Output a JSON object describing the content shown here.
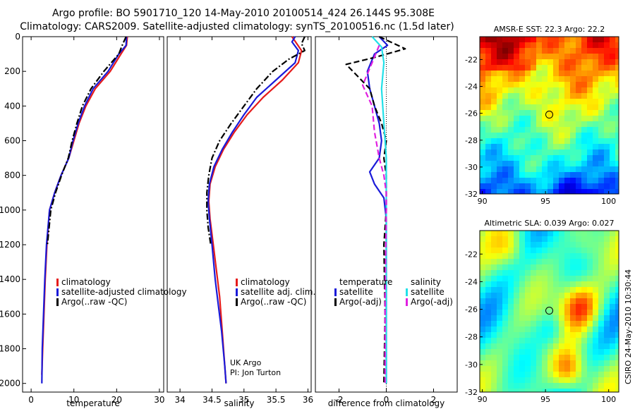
{
  "title": {
    "line1": "Argo profile: BO 5901710_120 14-May-2010 20100514_424 26.144S 95.308E",
    "line2": "Climatology: CARS2009. Satellite-adjusted climatology: synTS_20100516.nc (1.5d later)"
  },
  "credit": {
    "line1": "UK Argo",
    "line2": "PI: Jon Turton"
  },
  "stamp": "CSIRO 24-May-2010 10:30:44",
  "colors": {
    "climatology": "#e51b1b",
    "satellite": "#1a1ad9",
    "argo": "#000000",
    "sat_sal": "#22e0e8",
    "argo_sal": "#e020e0"
  },
  "chart_data": [
    {
      "type": "line",
      "id": "temperature",
      "xlabel": "temperature",
      "ylabel": "",
      "xlim": [
        -2,
        31
      ],
      "ylim": [
        0,
        2050
      ],
      "y_reversed": true,
      "xticks": [
        0,
        10,
        20,
        30
      ],
      "yticks": [
        0,
        200,
        400,
        600,
        800,
        1000,
        1200,
        1400,
        1600,
        1800,
        2000
      ],
      "legend": {
        "placement": "lower-right",
        "entries": [
          "climatology",
          "satellite-adjusted climatology",
          "Argo(..raw -QC)"
        ]
      },
      "series": [
        {
          "name": "climatology",
          "style": "solid",
          "color_key": "climatology",
          "points": [
            [
              22.5,
              0
            ],
            [
              22.3,
              50
            ],
            [
              21.0,
              100
            ],
            [
              18.5,
              200
            ],
            [
              15.0,
              300
            ],
            [
              12.8,
              400
            ],
            [
              11.2,
              500
            ],
            [
              10.0,
              600
            ],
            [
              8.8,
              700
            ],
            [
              7.0,
              800
            ],
            [
              5.5,
              900
            ],
            [
              4.3,
              1000
            ],
            [
              3.7,
              1200
            ],
            [
              3.3,
              1400
            ],
            [
              3.0,
              1600
            ],
            [
              2.7,
              1800
            ],
            [
              2.5,
              1950
            ]
          ]
        },
        {
          "name": "satellite-adjusted climatology",
          "style": "solid",
          "color_key": "satellite",
          "points": [
            [
              22.3,
              0
            ],
            [
              22.2,
              50
            ],
            [
              20.5,
              100
            ],
            [
              18.0,
              200
            ],
            [
              14.5,
              300
            ],
            [
              12.5,
              400
            ],
            [
              11.0,
              500
            ],
            [
              9.8,
              600
            ],
            [
              8.8,
              700
            ],
            [
              7.0,
              800
            ],
            [
              5.5,
              900
            ],
            [
              4.3,
              1000
            ],
            [
              3.6,
              1200
            ],
            [
              3.2,
              1400
            ],
            [
              2.9,
              1600
            ],
            [
              2.6,
              1800
            ],
            [
              2.5,
              2000
            ]
          ]
        },
        {
          "name": "Argo(..raw -QC)",
          "style": "dashdot",
          "color_key": "argo",
          "points": [
            [
              22.2,
              0
            ],
            [
              21.3,
              50
            ],
            [
              20.5,
              100
            ],
            [
              17.0,
              200
            ],
            [
              14.0,
              300
            ],
            [
              12.0,
              400
            ],
            [
              10.7,
              500
            ],
            [
              9.6,
              600
            ],
            [
              8.7,
              700
            ],
            [
              7.1,
              800
            ],
            [
              5.7,
              900
            ],
            [
              4.6,
              1000
            ],
            [
              3.8,
              1200
            ]
          ]
        }
      ]
    },
    {
      "type": "line",
      "id": "salinity",
      "xlabel": "salinity",
      "ylabel": "",
      "xlim": [
        33.8,
        36.05
      ],
      "ylim": [
        0,
        2050
      ],
      "y_reversed": true,
      "xticks": [
        34,
        34.5,
        35,
        35.5,
        36
      ],
      "legend": {
        "placement": "lower-right",
        "entries": [
          "climatology",
          "satellite adj. clim.",
          "Argo(..raw -QC)"
        ]
      },
      "series": [
        {
          "name": "climatology",
          "style": "solid",
          "color_key": "climatology",
          "points": [
            [
              35.75,
              0
            ],
            [
              35.9,
              80
            ],
            [
              35.85,
              150
            ],
            [
              35.6,
              250
            ],
            [
              35.3,
              350
            ],
            [
              35.05,
              450
            ],
            [
              34.85,
              550
            ],
            [
              34.68,
              650
            ],
            [
              34.55,
              750
            ],
            [
              34.47,
              850
            ],
            [
              34.45,
              950
            ],
            [
              34.47,
              1050
            ],
            [
              34.52,
              1200
            ],
            [
              34.57,
              1350
            ],
            [
              34.62,
              1500
            ],
            [
              34.66,
              1700
            ],
            [
              34.7,
              1900
            ],
            [
              34.72,
              2000
            ]
          ]
        },
        {
          "name": "satellite adj. clim.",
          "style": "solid",
          "color_key": "satellite",
          "points": [
            [
              35.8,
              0
            ],
            [
              35.75,
              30
            ],
            [
              35.85,
              80
            ],
            [
              35.8,
              150
            ],
            [
              35.5,
              250
            ],
            [
              35.2,
              350
            ],
            [
              35.0,
              450
            ],
            [
              34.82,
              550
            ],
            [
              34.66,
              650
            ],
            [
              34.53,
              750
            ],
            [
              34.46,
              850
            ],
            [
              34.44,
              950
            ],
            [
              34.46,
              1050
            ],
            [
              34.5,
              1200
            ],
            [
              34.55,
              1400
            ],
            [
              34.6,
              1550
            ],
            [
              34.65,
              1700
            ],
            [
              34.7,
              1900
            ],
            [
              34.72,
              2000
            ]
          ]
        },
        {
          "name": "Argo(..raw -QC)",
          "style": "dashdot",
          "color_key": "argo",
          "points": [
            [
              35.95,
              0
            ],
            [
              35.9,
              40
            ],
            [
              35.95,
              80
            ],
            [
              35.7,
              130
            ],
            [
              35.45,
              200
            ],
            [
              35.2,
              300
            ],
            [
              35.0,
              400
            ],
            [
              34.8,
              500
            ],
            [
              34.62,
              600
            ],
            [
              34.5,
              700
            ],
            [
              34.45,
              800
            ],
            [
              34.42,
              900
            ],
            [
              34.42,
              1000
            ],
            [
              34.44,
              1100
            ],
            [
              34.48,
              1200
            ]
          ]
        }
      ]
    },
    {
      "type": "line",
      "id": "difference",
      "xlabel": "difference from climatology",
      "ylabel": "",
      "xlim": [
        -3,
        3
      ],
      "ylim": [
        0,
        2050
      ],
      "y_reversed": true,
      "xticks": [
        -2,
        0,
        2
      ],
      "zero_line": true,
      "legend": {
        "placement": "lower-center",
        "headers": [
          "temperature",
          "salinity"
        ],
        "entries": [
          "satellite",
          "Argo(-adj)",
          "satellite",
          "Argo(-adj)"
        ]
      },
      "series": [
        {
          "name": "satellite",
          "group": "temperature",
          "style": "solid",
          "color_key": "satellite",
          "points": [
            [
              -0.3,
              0
            ],
            [
              0.05,
              50
            ],
            [
              -0.5,
              100
            ],
            [
              -0.8,
              200
            ],
            [
              -0.7,
              300
            ],
            [
              -0.5,
              400
            ],
            [
              -0.3,
              500
            ],
            [
              -0.2,
              600
            ],
            [
              -0.3,
              700
            ],
            [
              -0.7,
              780
            ],
            [
              -0.5,
              850
            ],
            [
              -0.1,
              930
            ],
            [
              0,
              1050
            ],
            [
              0,
              1500
            ],
            [
              0,
              2000
            ]
          ]
        },
        {
          "name": "Argo(-adj)",
          "group": "temperature",
          "style": "dashed",
          "color_key": "argo",
          "points": [
            [
              -0.3,
              0
            ],
            [
              0.8,
              70
            ],
            [
              -0.5,
              120
            ],
            [
              -1.7,
              160
            ],
            [
              -1.2,
              230
            ],
            [
              -0.7,
              300
            ],
            [
              -0.5,
              400
            ],
            [
              -0.2,
              500
            ],
            [
              0,
              600
            ],
            [
              -0.1,
              700
            ],
            [
              0,
              800
            ],
            [
              0,
              1000
            ],
            [
              -0.1,
              1200
            ],
            [
              -0.05,
              1600
            ],
            [
              -0.1,
              2000
            ]
          ]
        },
        {
          "name": "satellite",
          "group": "salinity",
          "style": "solid",
          "color_key": "sat_sal",
          "points": [
            [
              -0.6,
              0
            ],
            [
              -0.2,
              60
            ],
            [
              -0.1,
              150
            ],
            [
              -0.2,
              300
            ],
            [
              -0.1,
              500
            ],
            [
              0,
              700
            ],
            [
              0,
              1000
            ],
            [
              0,
              1500
            ],
            [
              0,
              2000
            ]
          ]
        },
        {
          "name": "Argo(-adj)",
          "group": "salinity",
          "style": "dashed",
          "color_key": "argo_sal",
          "points": [
            [
              -0.3,
              50
            ],
            [
              -0.6,
              150
            ],
            [
              -1.0,
              280
            ],
            [
              -0.6,
              400
            ],
            [
              -0.5,
              550
            ],
            [
              -0.3,
              700
            ],
            [
              -0.1,
              800
            ],
            [
              0,
              900
            ],
            [
              0,
              1000
            ],
            [
              -0.05,
              1500
            ],
            [
              -0.05,
              2000
            ]
          ]
        }
      ]
    },
    {
      "type": "heatmap",
      "id": "sst-map",
      "title": "AMSR-E SST: 22.3  Argo: 22.2",
      "xlim": [
        89.8,
        100.8
      ],
      "ylim": [
        -32,
        -20.3
      ],
      "xticks": [
        90,
        95,
        100
      ],
      "yticks": [
        -22,
        -24,
        -26,
        -28,
        -30,
        -32
      ],
      "marker": {
        "lon": 95.3,
        "lat": -26.1
      },
      "colormap": "jet",
      "value_range": [
        20,
        24.5
      ]
    },
    {
      "type": "heatmap",
      "id": "sla-map",
      "title": "Altimetric SLA: 0.039  Argo: 0.027",
      "xlim": [
        89.8,
        100.8
      ],
      "ylim": [
        -32,
        -20.3
      ],
      "xticks": [
        90,
        95,
        100
      ],
      "yticks": [
        -22,
        -24,
        -26,
        -28,
        -30,
        -32
      ],
      "marker": {
        "lon": 95.3,
        "lat": -26.1
      },
      "colormap": "jet",
      "value_range": [
        -0.15,
        0.15
      ]
    }
  ]
}
